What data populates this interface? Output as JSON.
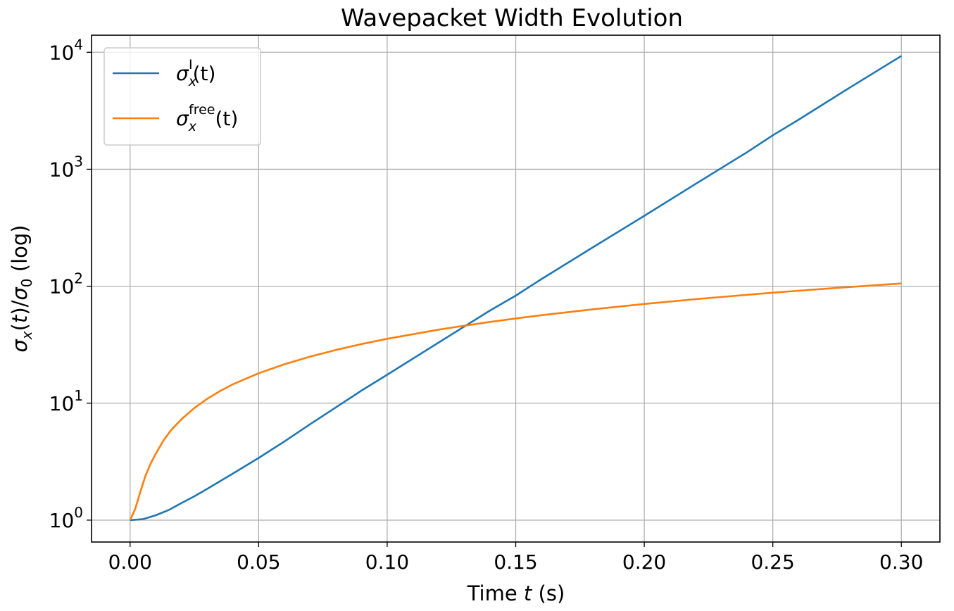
{
  "chart_data": {
    "type": "line",
    "title": "Wavepacket Width Evolution",
    "xlabel": "Time t (s)",
    "ylabel": "σx(t)/σ0 (log)",
    "yscale": "log",
    "xlim": [
      -0.015,
      0.315
    ],
    "ylim": [
      0.65,
      14000
    ],
    "grid": true,
    "legend_position": "top-left",
    "x_ticks": [
      {
        "value": 0.0,
        "label": "0.00"
      },
      {
        "value": 0.05,
        "label": "0.05"
      },
      {
        "value": 0.1,
        "label": "0.10"
      },
      {
        "value": 0.15,
        "label": "0.15"
      },
      {
        "value": 0.2,
        "label": "0.20"
      },
      {
        "value": 0.25,
        "label": "0.25"
      },
      {
        "value": 0.3,
        "label": "0.30"
      }
    ],
    "y_ticks": [
      {
        "value": 1,
        "base": "10",
        "exp": "0"
      },
      {
        "value": 10,
        "base": "10",
        "exp": "1"
      },
      {
        "value": 100,
        "base": "10",
        "exp": "2"
      },
      {
        "value": 1000,
        "base": "10",
        "exp": "3"
      },
      {
        "value": 10000,
        "base": "10",
        "exp": "4"
      }
    ],
    "series": [
      {
        "name": "σxI(t)",
        "label_main": "σ",
        "label_sub": "x",
        "label_sup": "I",
        "label_tail": "(t)",
        "color": "#1f77b4",
        "x": [
          0.0,
          0.005,
          0.01,
          0.015,
          0.02,
          0.025,
          0.03,
          0.04,
          0.05,
          0.06,
          0.07,
          0.08,
          0.09,
          0.1,
          0.12,
          0.14,
          0.15,
          0.16,
          0.18,
          0.2,
          0.22,
          0.24,
          0.25,
          0.26,
          0.28,
          0.3
        ],
        "y": [
          1.0,
          1.02,
          1.1,
          1.22,
          1.4,
          1.6,
          1.85,
          2.5,
          3.4,
          4.7,
          6.6,
          9.2,
          12.8,
          17.5,
          33.0,
          62.0,
          83.0,
          115.0,
          215.0,
          400.0,
          750.0,
          1400.0,
          1950.0,
          2650.0,
          5000.0,
          9300.0
        ]
      },
      {
        "name": "σxfree(t)",
        "label_main": "σ",
        "label_sub": "x",
        "label_sup": "free",
        "label_tail": "(t)",
        "color": "#ff7f0e",
        "x": [
          0.0,
          0.002,
          0.004,
          0.006,
          0.008,
          0.01,
          0.013,
          0.016,
          0.02,
          0.025,
          0.03,
          0.035,
          0.04,
          0.05,
          0.06,
          0.07,
          0.08,
          0.09,
          0.1,
          0.12,
          0.14,
          0.15,
          0.16,
          0.18,
          0.2,
          0.22,
          0.24,
          0.25,
          0.26,
          0.28,
          0.3
        ],
        "y": [
          1.0,
          1.25,
          1.75,
          2.4,
          3.05,
          3.7,
          4.8,
          5.9,
          7.3,
          9.1,
          10.9,
          12.7,
          14.5,
          18.0,
          21.5,
          25.0,
          28.5,
          32.0,
          35.5,
          42.5,
          49.5,
          53.0,
          56.5,
          63.5,
          70.5,
          77.5,
          84.5,
          88.0,
          91.5,
          98.5,
          105.5
        ]
      }
    ]
  }
}
